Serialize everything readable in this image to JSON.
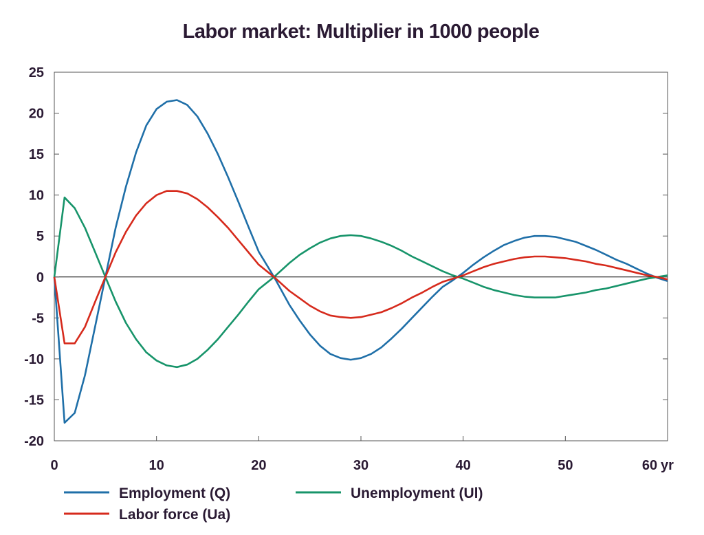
{
  "chart_data": {
    "type": "line",
    "title": "Labor market: Multiplier in 1000 people",
    "xlabel": "",
    "ylabel": "",
    "x_unit": "yr",
    "xlim": [
      0,
      60
    ],
    "ylim": [
      -20,
      25
    ],
    "x_ticks": [
      0,
      10,
      20,
      30,
      40,
      50,
      60
    ],
    "y_ticks": [
      25,
      20,
      15,
      10,
      5,
      0,
      -5,
      -10,
      -15,
      -20
    ],
    "legend_placement": "bottom",
    "grid": false,
    "series": [
      {
        "name": "Employment (Q)",
        "color": "#1f6fa8",
        "points": [
          [
            0,
            0
          ],
          [
            1,
            -17.8
          ],
          [
            2,
            -16.6
          ],
          [
            3,
            -12
          ],
          [
            4,
            -6
          ],
          [
            5,
            0
          ],
          [
            6,
            6
          ],
          [
            7,
            11
          ],
          [
            8,
            15.2
          ],
          [
            9,
            18.5
          ],
          [
            10,
            20.5
          ],
          [
            11,
            21.4
          ],
          [
            12,
            21.6
          ],
          [
            13,
            21
          ],
          [
            14,
            19.6
          ],
          [
            15,
            17.5
          ],
          [
            16,
            15
          ],
          [
            17,
            12.2
          ],
          [
            18,
            9.2
          ],
          [
            19,
            6.1
          ],
          [
            20,
            3.1
          ],
          [
            21.5,
            0
          ],
          [
            23,
            -3.4
          ],
          [
            24,
            -5.3
          ],
          [
            25,
            -7
          ],
          [
            26,
            -8.4
          ],
          [
            27,
            -9.4
          ],
          [
            28,
            -9.9
          ],
          [
            29,
            -10.1
          ],
          [
            30,
            -9.9
          ],
          [
            31,
            -9.4
          ],
          [
            32,
            -8.6
          ],
          [
            33,
            -7.5
          ],
          [
            34,
            -6.3
          ],
          [
            35,
            -5
          ],
          [
            36,
            -3.7
          ],
          [
            37,
            -2.4
          ],
          [
            38,
            -1.2
          ],
          [
            39,
            -0.4
          ],
          [
            40,
            0.5
          ],
          [
            41,
            1.5
          ],
          [
            42,
            2.4
          ],
          [
            43,
            3.2
          ],
          [
            44,
            3.9
          ],
          [
            45,
            4.4
          ],
          [
            46,
            4.8
          ],
          [
            47,
            5
          ],
          [
            48,
            5
          ],
          [
            49,
            4.9
          ],
          [
            50,
            4.6
          ],
          [
            51,
            4.3
          ],
          [
            52,
            3.8
          ],
          [
            53,
            3.3
          ],
          [
            54,
            2.7
          ],
          [
            55,
            2.1
          ],
          [
            56,
            1.6
          ],
          [
            57,
            1
          ],
          [
            58,
            0.4
          ],
          [
            59,
            -0.1
          ],
          [
            60,
            -0.5
          ]
        ]
      },
      {
        "name": "Unemployment (Ul)",
        "color": "#17946a",
        "points": [
          [
            0,
            0
          ],
          [
            1,
            9.7
          ],
          [
            2,
            8.4
          ],
          [
            3,
            6
          ],
          [
            4,
            3
          ],
          [
            5,
            0
          ],
          [
            6,
            -3
          ],
          [
            7,
            -5.6
          ],
          [
            8,
            -7.6
          ],
          [
            9,
            -9.2
          ],
          [
            10,
            -10.2
          ],
          [
            11,
            -10.8
          ],
          [
            12,
            -11
          ],
          [
            13,
            -10.7
          ],
          [
            14,
            -10
          ],
          [
            15,
            -8.9
          ],
          [
            16,
            -7.6
          ],
          [
            17,
            -6.1
          ],
          [
            18,
            -4.6
          ],
          [
            19,
            -3
          ],
          [
            20,
            -1.5
          ],
          [
            21.5,
            0
          ],
          [
            23,
            1.7
          ],
          [
            24,
            2.7
          ],
          [
            25,
            3.5
          ],
          [
            26,
            4.2
          ],
          [
            27,
            4.7
          ],
          [
            28,
            5
          ],
          [
            29,
            5.1
          ],
          [
            30,
            5
          ],
          [
            31,
            4.7
          ],
          [
            32,
            4.3
          ],
          [
            33,
            3.8
          ],
          [
            34,
            3.2
          ],
          [
            35,
            2.5
          ],
          [
            36,
            1.9
          ],
          [
            37,
            1.3
          ],
          [
            38,
            0.7
          ],
          [
            39,
            0.2
          ],
          [
            40,
            -0.2
          ],
          [
            41,
            -0.7
          ],
          [
            42,
            -1.2
          ],
          [
            43,
            -1.6
          ],
          [
            44,
            -1.9
          ],
          [
            45,
            -2.2
          ],
          [
            46,
            -2.4
          ],
          [
            47,
            -2.5
          ],
          [
            48,
            -2.5
          ],
          [
            49,
            -2.5
          ],
          [
            50,
            -2.3
          ],
          [
            51,
            -2.1
          ],
          [
            52,
            -1.9
          ],
          [
            53,
            -1.6
          ],
          [
            54,
            -1.4
          ],
          [
            55,
            -1.1
          ],
          [
            56,
            -0.8
          ],
          [
            57,
            -0.5
          ],
          [
            58,
            -0.2
          ],
          [
            59,
            0
          ],
          [
            60,
            0.2
          ]
        ]
      },
      {
        "name": "Labor force (Ua)",
        "color": "#d62a1c",
        "points": [
          [
            0,
            0
          ],
          [
            1,
            -8.1
          ],
          [
            2,
            -8.1
          ],
          [
            3,
            -6.1
          ],
          [
            4,
            -3
          ],
          [
            5,
            0
          ],
          [
            6,
            3
          ],
          [
            7,
            5.5
          ],
          [
            8,
            7.5
          ],
          [
            9,
            9
          ],
          [
            10,
            10
          ],
          [
            11,
            10.5
          ],
          [
            12,
            10.5
          ],
          [
            13,
            10.2
          ],
          [
            14,
            9.5
          ],
          [
            15,
            8.5
          ],
          [
            16,
            7.3
          ],
          [
            17,
            6
          ],
          [
            18,
            4.5
          ],
          [
            19,
            3
          ],
          [
            20,
            1.5
          ],
          [
            21.5,
            0
          ],
          [
            23,
            -1.7
          ],
          [
            24,
            -2.6
          ],
          [
            25,
            -3.5
          ],
          [
            26,
            -4.2
          ],
          [
            27,
            -4.7
          ],
          [
            28,
            -4.9
          ],
          [
            29,
            -5
          ],
          [
            30,
            -4.9
          ],
          [
            31,
            -4.6
          ],
          [
            32,
            -4.3
          ],
          [
            33,
            -3.8
          ],
          [
            34,
            -3.2
          ],
          [
            35,
            -2.5
          ],
          [
            36,
            -1.9
          ],
          [
            37,
            -1.2
          ],
          [
            38,
            -0.6
          ],
          [
            39,
            -0.2
          ],
          [
            40,
            0.2
          ],
          [
            41,
            0.7
          ],
          [
            42,
            1.2
          ],
          [
            43,
            1.6
          ],
          [
            44,
            1.9
          ],
          [
            45,
            2.2
          ],
          [
            46,
            2.4
          ],
          [
            47,
            2.5
          ],
          [
            48,
            2.5
          ],
          [
            49,
            2.4
          ],
          [
            50,
            2.3
          ],
          [
            51,
            2.1
          ],
          [
            52,
            1.9
          ],
          [
            53,
            1.6
          ],
          [
            54,
            1.4
          ],
          [
            55,
            1.1
          ],
          [
            56,
            0.8
          ],
          [
            57,
            0.5
          ],
          [
            58,
            0.2
          ],
          [
            59,
            0
          ],
          [
            60,
            -0.3
          ]
        ]
      }
    ],
    "legend_order": [
      0,
      1,
      2
    ]
  }
}
